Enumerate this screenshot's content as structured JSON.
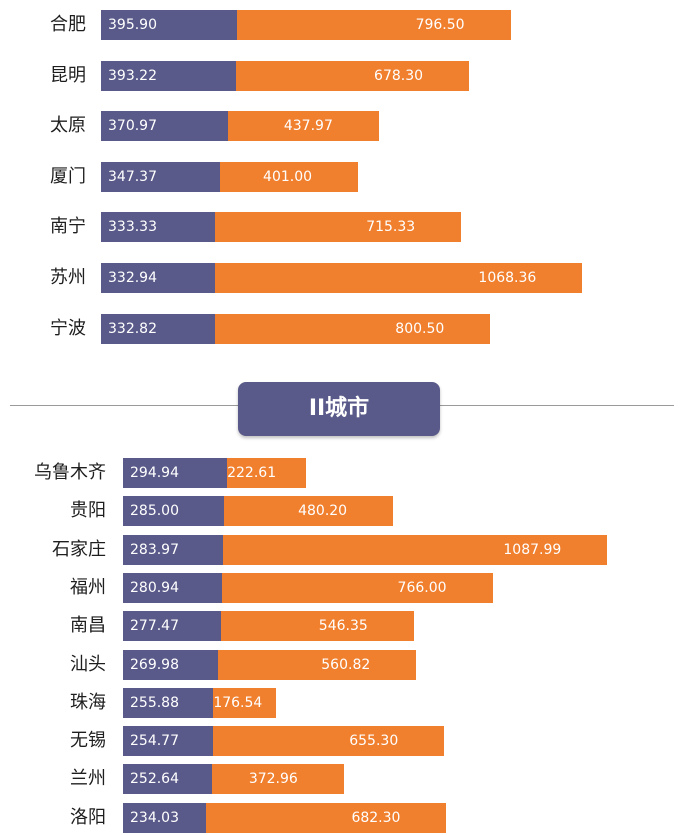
{
  "tier_badge": "II城市",
  "colors": {
    "series_a": "#5a5a8a",
    "series_b": "#f07f2e",
    "badge": "#5a5a8a"
  },
  "chart_data": [
    {
      "type": "bar",
      "orientation": "horizontal",
      "stacked": true,
      "categories": [
        "合肥",
        "昆明",
        "太原",
        "厦门",
        "南宁",
        "苏州",
        "宁波"
      ],
      "series": [
        {
          "values": [
            395.9,
            393.22,
            370.97,
            347.37,
            333.33,
            332.94,
            332.82
          ]
        },
        {
          "values": [
            796.5,
            678.3,
            437.97,
            401.0,
            715.33,
            1068.36,
            800.5
          ]
        }
      ],
      "labels_a": [
        "395.90",
        "393.22",
        "370.97",
        "347.37",
        "333.33",
        "332.94",
        "332.82"
      ],
      "labels_b": [
        "796.50",
        "678.30",
        "437.97",
        "401.00",
        "715.33",
        "1068.36",
        "800.50"
      ]
    },
    {
      "type": "bar",
      "orientation": "horizontal",
      "stacked": true,
      "categories": [
        "乌鲁木齐",
        "贵阳",
        "石家庄",
        "福州",
        "南昌",
        "汕头",
        "珠海",
        "无锡",
        "兰州",
        "洛阳"
      ],
      "series": [
        {
          "values": [
            294.94,
            285.0,
            283.97,
            280.94,
            277.47,
            269.98,
            255.88,
            254.77,
            252.64,
            234.03
          ]
        },
        {
          "values": [
            222.61,
            480.2,
            1087.99,
            766.0,
            546.35,
            560.82,
            176.54,
            655.3,
            372.96,
            682.3
          ]
        }
      ],
      "labels_a": [
        "294.94",
        "285.00",
        "283.97",
        "280.94",
        "277.47",
        "269.98",
        "255.88",
        "254.77",
        "252.64",
        "234.03"
      ],
      "labels_b": [
        "222.61",
        "480.20",
        "1087.99",
        "766.00",
        "546.35",
        "560.82",
        "176.54",
        "655.30",
        "372.96",
        "682.30"
      ]
    }
  ]
}
